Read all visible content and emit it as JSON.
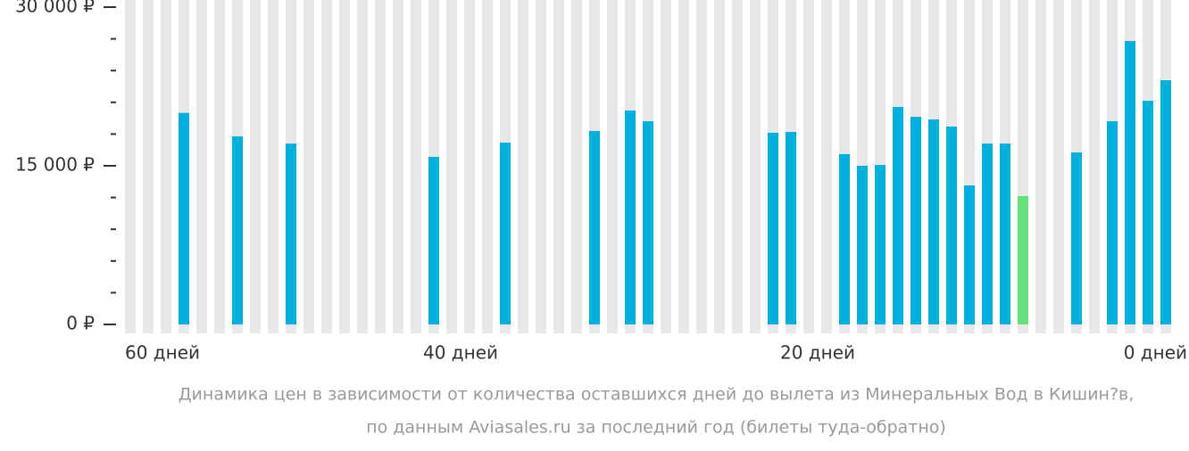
{
  "chart_data": {
    "type": "bar",
    "categories": [
      "60 дней",
      null,
      null,
      null,
      null,
      null,
      null,
      null,
      null,
      null,
      null,
      null,
      null,
      null,
      null,
      null,
      null,
      null,
      null,
      "40 дней",
      null,
      null,
      null,
      null,
      null,
      null,
      null,
      null,
      null,
      null,
      null,
      null,
      null,
      null,
      null,
      null,
      null,
      null,
      null,
      "20 дней",
      null,
      null,
      null,
      null,
      null,
      null,
      null,
      null,
      null,
      null,
      null,
      null,
      null,
      null,
      null,
      null,
      null,
      null,
      "0 дней"
    ],
    "values": [
      null,
      null,
      null,
      20000,
      null,
      null,
      17780,
      null,
      null,
      17100,
      null,
      null,
      null,
      null,
      null,
      null,
      null,
      15840,
      null,
      null,
      null,
      17190,
      null,
      null,
      null,
      null,
      18290,
      null,
      20220,
      19210,
      null,
      null,
      null,
      null,
      null,
      null,
      18120,
      18200,
      null,
      null,
      16100,
      15000,
      15080,
      20560,
      19630,
      19380,
      18710,
      13150,
      17100,
      17100,
      12130,
      null,
      null,
      16260,
      null,
      19210,
      26800,
      21150,
      23090
    ],
    "color": "#00b1de",
    "highlight_color": "#66e07c",
    "slot_color": "#e8e8e8",
    "ylim": [
      0,
      30000
    ],
    "yticks": [
      {
        "value": 0,
        "label": "0 ₽"
      },
      {
        "value": 15000,
        "label": "15 000 ₽"
      },
      {
        "value": 30000,
        "label": "30 000 ₽"
      }
    ],
    "minor_yticks": [
      3000,
      6000,
      9000,
      12000,
      18000,
      21000,
      24000,
      27000
    ],
    "caption": [
      "Динамика цен в зависимости от количества оставшихся дней до вылета из Минеральных Вод в Кишин?в,",
      "по данным Aviasales.ru за последний год (билеты туда-обратно)"
    ]
  }
}
